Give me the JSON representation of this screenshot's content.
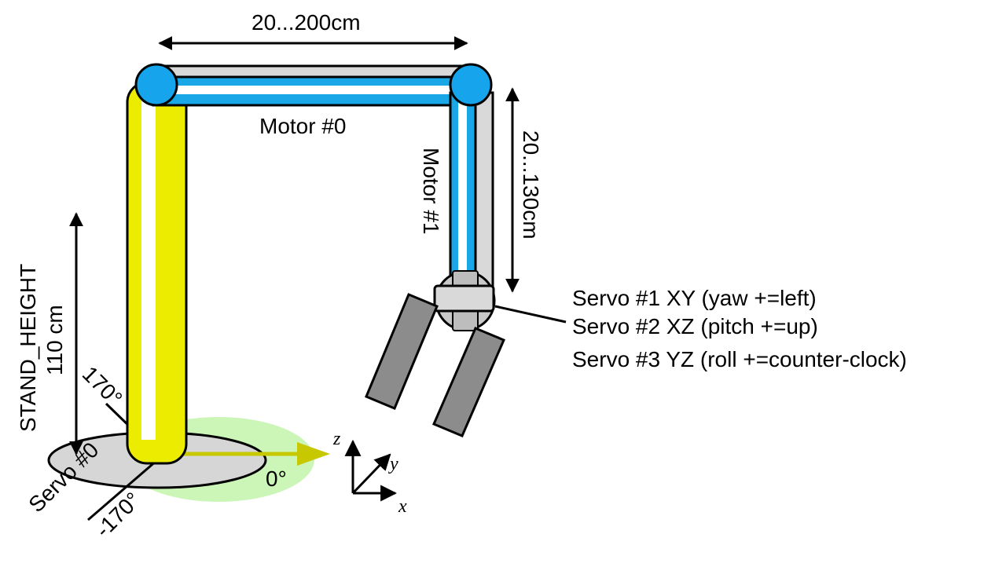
{
  "labels": {
    "width_range": "20...200cm",
    "height_range": "20...130cm",
    "motor0": "Motor #0",
    "motor1": "Motor #1",
    "stand_height_name": "STAND_HEIGHT",
    "stand_height_value": "110 cm",
    "servo0": "Servo #0",
    "angle_max": "170°",
    "angle_min": "-170°",
    "angle_zero": "0°",
    "servo1": "Servo #1 XY (yaw +=left)",
    "servo2": "Servo #2 XZ (pitch +=up)",
    "servo3": "Servo #3 YZ (roll +=counter-clock)"
  },
  "axes": {
    "x": "x",
    "y": "y",
    "z": "z"
  },
  "colors": {
    "column": "#ecec00",
    "arm_blue": "#1aa7e8",
    "joint": "#16a4ec",
    "rail": "#d9d9d9",
    "base": "#d6d6d6",
    "sweep": "#ccf5b8",
    "direction_arrow": "#c8c800",
    "gripper": "#8c8c8c",
    "gripper_hub": "#c8c8c8"
  }
}
